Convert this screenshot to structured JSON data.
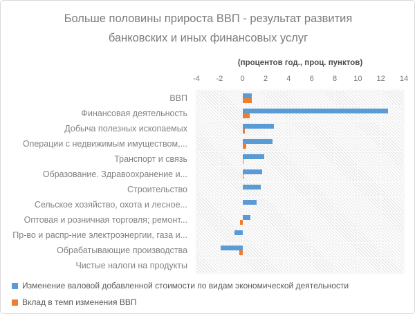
{
  "title": "Больше половины прироста ВВП - результат развития банковских и иных финансовых услуг",
  "subtitle": "(процентов год., проц. пунктов)",
  "chart_data": {
    "type": "bar",
    "orientation": "horizontal",
    "title": "Больше половины прироста ВВП - результат развития банковских и иных финансовых услуг",
    "units_label": "(процентов год., проц. пунктов)",
    "xlim": [
      -4,
      14
    ],
    "x_ticks": [
      -4,
      -2,
      0,
      2,
      4,
      6,
      8,
      10,
      12,
      14
    ],
    "grid": true,
    "plot_background": "diagonal-hatch",
    "legend_position": "bottom-left",
    "categories": [
      "ВВП",
      "Финансовая деятельность",
      "Добыча полезных ископаемых",
      "Операции с недвижимым имуществом,...",
      "Транспорт и связь",
      "Образование. Здравоохранение и...",
      "Строительство",
      "Сельское хозяйство, охота и лесное...",
      "Оптовая и розничная торговля; ремонт...",
      "Пр-во и распр-ние электроэнергии, газа и...",
      "Обрабатывающие производства",
      "Чистые налоги на продукты"
    ],
    "series": [
      {
        "name": "Изменение валовой добавленной стоимости по видам экономической деятельности",
        "color": "#5B9BD5",
        "values": [
          0.8,
          12.6,
          2.7,
          2.6,
          1.9,
          1.7,
          1.6,
          1.2,
          0.7,
          -0.7,
          -1.9,
          0
        ]
      },
      {
        "name": "Вклад в темп изменения ВВП",
        "color": "#ED7D31",
        "values": [
          0.8,
          0.6,
          0.2,
          0.3,
          0.1,
          0.1,
          0,
          0,
          -0.2,
          0,
          -0.3,
          0
        ]
      }
    ]
  }
}
